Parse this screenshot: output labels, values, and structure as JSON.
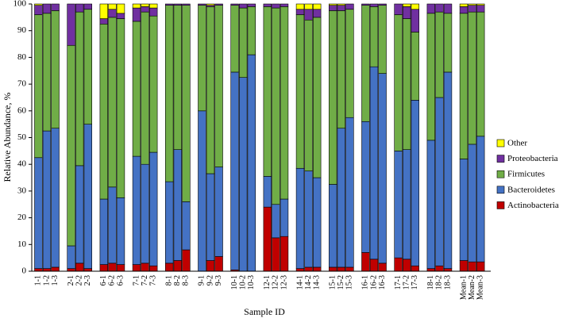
{
  "chart_data": {
    "type": "bar",
    "stacked": true,
    "ylabel": "Relative Abundance, %",
    "xlabel": "Sample ID",
    "ylim": [
      0,
      100
    ],
    "yticks": [
      0,
      10,
      20,
      30,
      40,
      50,
      60,
      70,
      80,
      90,
      100
    ],
    "grid": false,
    "legend_position": "right",
    "series": [
      {
        "name": "Actinobacteria",
        "color": "#c00000"
      },
      {
        "name": "Bacteroidetes",
        "color": "#4472c4"
      },
      {
        "name": "Firmicutes",
        "color": "#70ad47"
      },
      {
        "name": "Proteobacteria",
        "color": "#7030a0"
      },
      {
        "name": "Other",
        "color": "#ffff00"
      }
    ],
    "groups": [
      {
        "samples": [
          {
            "id": "1-1",
            "tops": [
              1,
              42.5,
              96,
              99.5
            ]
          },
          {
            "id": "1-2",
            "tops": [
              1,
              52.5,
              96.5,
              100
            ]
          },
          {
            "id": "1-3",
            "tops": [
              1.5,
              53.5,
              97.5,
              100
            ]
          }
        ]
      },
      {
        "samples": [
          {
            "id": "2-1",
            "tops": [
              1,
              9.5,
              84.5,
              100
            ]
          },
          {
            "id": "2-2",
            "tops": [
              3,
              39.5,
              97,
              100
            ]
          },
          {
            "id": "2-3",
            "tops": [
              1,
              55,
              98,
              100
            ]
          }
        ]
      },
      {
        "samples": [
          {
            "id": "6-1",
            "tops": [
              2.5,
              27,
              92.5,
              94.5
            ]
          },
          {
            "id": "6-2",
            "tops": [
              3,
              31.5,
              95,
              98
            ]
          },
          {
            "id": "6-3",
            "tops": [
              2.5,
              27.5,
              94.5,
              96.5
            ]
          }
        ]
      },
      {
        "samples": [
          {
            "id": "7-1",
            "tops": [
              2.5,
              43,
              93.5,
              98.5
            ]
          },
          {
            "id": "7-2",
            "tops": [
              3,
              40,
              97,
              99
            ]
          },
          {
            "id": "7-3",
            "tops": [
              2,
              44.5,
              95.5,
              98.5
            ]
          }
        ]
      },
      {
        "samples": [
          {
            "id": "8-1",
            "tops": [
              3,
              33.5,
              99.5,
              100
            ]
          },
          {
            "id": "8-2",
            "tops": [
              4,
              45.5,
              99.5,
              100
            ]
          },
          {
            "id": "8-3",
            "tops": [
              8,
              26,
              99.5,
              100
            ]
          }
        ]
      },
      {
        "samples": [
          {
            "id": "9-1",
            "tops": [
              0,
              60,
              99.5,
              100
            ]
          },
          {
            "id": "9-2",
            "tops": [
              4,
              36.5,
              99,
              99.5
            ]
          },
          {
            "id": "9-3",
            "tops": [
              5.5,
              39,
              99.5,
              100
            ]
          }
        ]
      },
      {
        "samples": [
          {
            "id": "10-1",
            "tops": [
              0.5,
              74.5,
              99.5,
              100
            ]
          },
          {
            "id": "10-2",
            "tops": [
              0,
              72.5,
              98.5,
              100
            ]
          },
          {
            "id": "10-3",
            "tops": [
              0,
              81,
              99,
              100
            ]
          }
        ]
      },
      {
        "samples": [
          {
            "id": "12-1",
            "tops": [
              24,
              35.5,
              99,
              100
            ]
          },
          {
            "id": "12-2",
            "tops": [
              12.5,
              25,
              98.5,
              100
            ]
          },
          {
            "id": "12-3",
            "tops": [
              13,
              27,
              99,
              100
            ]
          }
        ]
      },
      {
        "samples": [
          {
            "id": "14-1",
            "tops": [
              1,
              38.5,
              96,
              98
            ]
          },
          {
            "id": "14-2",
            "tops": [
              1.5,
              37.5,
              94,
              98
            ]
          },
          {
            "id": "14-3",
            "tops": [
              1.5,
              35,
              95,
              98
            ]
          }
        ]
      },
      {
        "samples": [
          {
            "id": "15-1",
            "tops": [
              1.5,
              32.5,
              97.5,
              99.5
            ]
          },
          {
            "id": "15-2",
            "tops": [
              1.5,
              53.5,
              97.5,
              99.5
            ]
          },
          {
            "id": "15-3",
            "tops": [
              1.5,
              57.5,
              98,
              100
            ]
          }
        ]
      },
      {
        "samples": [
          {
            "id": "16-1",
            "tops": [
              7,
              56,
              99.5,
              100
            ]
          },
          {
            "id": "16-2",
            "tops": [
              4.5,
              76.5,
              99,
              100
            ]
          },
          {
            "id": "16-3",
            "tops": [
              3,
              74,
              99.5,
              100
            ]
          }
        ]
      },
      {
        "samples": [
          {
            "id": "17-1",
            "tops": [
              5,
              45,
              96,
              100
            ]
          },
          {
            "id": "17-2",
            "tops": [
              4.5,
              45.5,
              94.5,
              99
            ]
          },
          {
            "id": "17-3",
            "tops": [
              2,
              64,
              89.5,
              98
            ]
          }
        ]
      },
      {
        "samples": [
          {
            "id": "18-1",
            "tops": [
              1,
              49,
              96.5,
              100
            ]
          },
          {
            "id": "18-2",
            "tops": [
              2,
              65,
              97,
              100
            ]
          },
          {
            "id": "18-3",
            "tops": [
              1,
              74.5,
              96.5,
              100
            ]
          }
        ]
      },
      {
        "samples": [
          {
            "id": "Mean-1",
            "tops": [
              4,
              42,
              96.5,
              99
            ]
          },
          {
            "id": "Mean-2",
            "tops": [
              3.5,
              47.5,
              97,
              99.5
            ]
          },
          {
            "id": "Mean-3",
            "tops": [
              3.5,
              50.5,
              97,
              99.5
            ]
          }
        ]
      }
    ]
  }
}
